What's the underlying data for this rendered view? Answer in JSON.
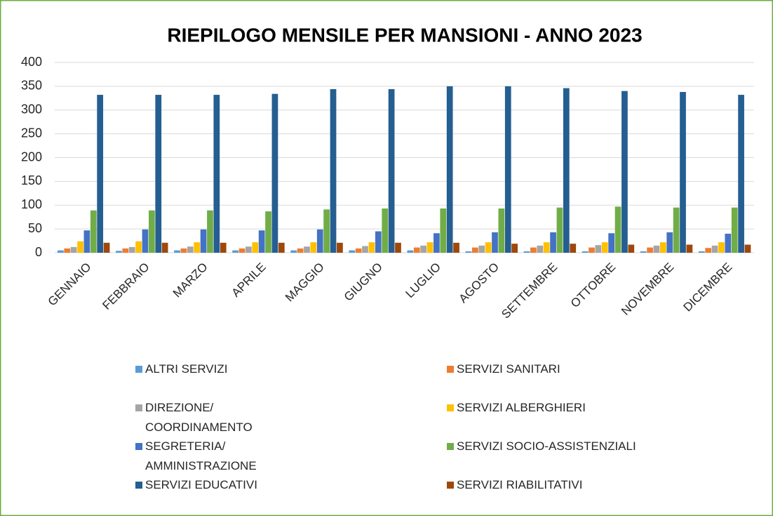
{
  "chart_data": {
    "type": "bar",
    "title": "RIEPILOGO MENSILE PER MANSIONI - ANNO 2023",
    "categories": [
      "GENNAIO",
      "FEBBRAIO",
      "MARZO",
      "APRILE",
      "MAGGIO",
      "GIUGNO",
      "LUGLIO",
      "AGOSTO",
      "SETTEMBRE",
      "OTTOBRE",
      "NOVEMBRE",
      "DICEMBRE"
    ],
    "series": [
      {
        "name": "ALTRI SERVIZI",
        "color": "#5b9bd5",
        "values": [
          5,
          4,
          5,
          5,
          5,
          5,
          5,
          3,
          3,
          3,
          3,
          3
        ]
      },
      {
        "name": "SERVIZI SANITARI",
        "color": "#ed7d31",
        "values": [
          9,
          9,
          9,
          9,
          9,
          9,
          11,
          11,
          11,
          11,
          11,
          10
        ]
      },
      {
        "name": "DIREZIONE/ COORDINAMENTO",
        "color": "#a5a5a5",
        "values": [
          12,
          12,
          13,
          13,
          13,
          14,
          15,
          15,
          15,
          16,
          15,
          15
        ]
      },
      {
        "name": "SERVIZI ALBERGHIERI",
        "color": "#ffc000",
        "values": [
          24,
          24,
          22,
          22,
          22,
          22,
          22,
          22,
          22,
          22,
          22,
          22
        ]
      },
      {
        "name": "SEGRETERIA/ AMMINISTRAZIONE",
        "color": "#4472c4",
        "values": [
          47,
          49,
          49,
          47,
          49,
          45,
          41,
          43,
          43,
          41,
          43,
          40
        ]
      },
      {
        "name": "SERVIZI SOCIO-ASSISTENZIALI",
        "color": "#70ad47",
        "values": [
          89,
          89,
          89,
          87,
          91,
          93,
          93,
          93,
          95,
          97,
          95,
          95
        ]
      },
      {
        "name": "SERVIZI EDUCATIVI",
        "color": "#255e91",
        "values": [
          332,
          332,
          332,
          334,
          344,
          344,
          350,
          350,
          346,
          340,
          338,
          332
        ]
      },
      {
        "name": "SERVIZI RIABILITATIVI",
        "color": "#9e480e",
        "values": [
          21,
          21,
          21,
          21,
          21,
          21,
          21,
          19,
          19,
          17,
          17,
          17
        ]
      }
    ],
    "ylim": [
      0,
      400
    ],
    "yticks": [
      0,
      50,
      100,
      150,
      200,
      250,
      300,
      350,
      400
    ],
    "grid": true
  }
}
